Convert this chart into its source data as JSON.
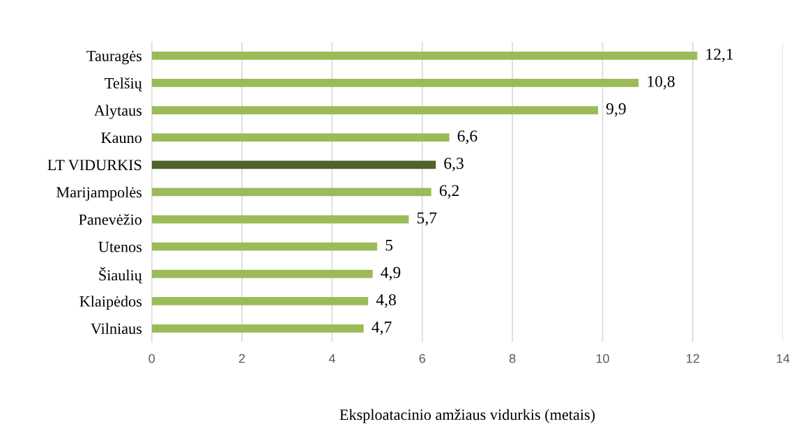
{
  "chart_data": {
    "type": "bar",
    "orientation": "horizontal",
    "xlabel": "Eksploatacinio amžiaus vidurkis (metais)",
    "categories": [
      "Tauragės",
      "Telšių",
      "Alytaus",
      "Kauno",
      "LT VIDURKIS",
      "Marijampolės",
      "Panevėžio",
      "Utenos",
      "Šiaulių",
      "Klaipėdos",
      "Vilniaus"
    ],
    "values": [
      12.1,
      10.8,
      9.9,
      6.6,
      6.3,
      6.2,
      5.7,
      5,
      4.9,
      4.8,
      4.7
    ],
    "colors": [
      "#9bbb59",
      "#9bbb59",
      "#9bbb59",
      "#9bbb59",
      "#4f6228",
      "#9bbb59",
      "#9bbb59",
      "#9bbb59",
      "#9bbb59",
      "#9bbb59",
      "#9bbb59"
    ],
    "value_labels": [
      "12,1",
      "10,8",
      "9,9",
      "6,6",
      "6,3",
      "6,2",
      "5,7",
      "5",
      "4,9",
      "4,8",
      "4,7"
    ],
    "xlim": [
      0,
      14
    ],
    "xticks": [
      0,
      2,
      4,
      6,
      8,
      10,
      12,
      14
    ],
    "grid": "x"
  }
}
